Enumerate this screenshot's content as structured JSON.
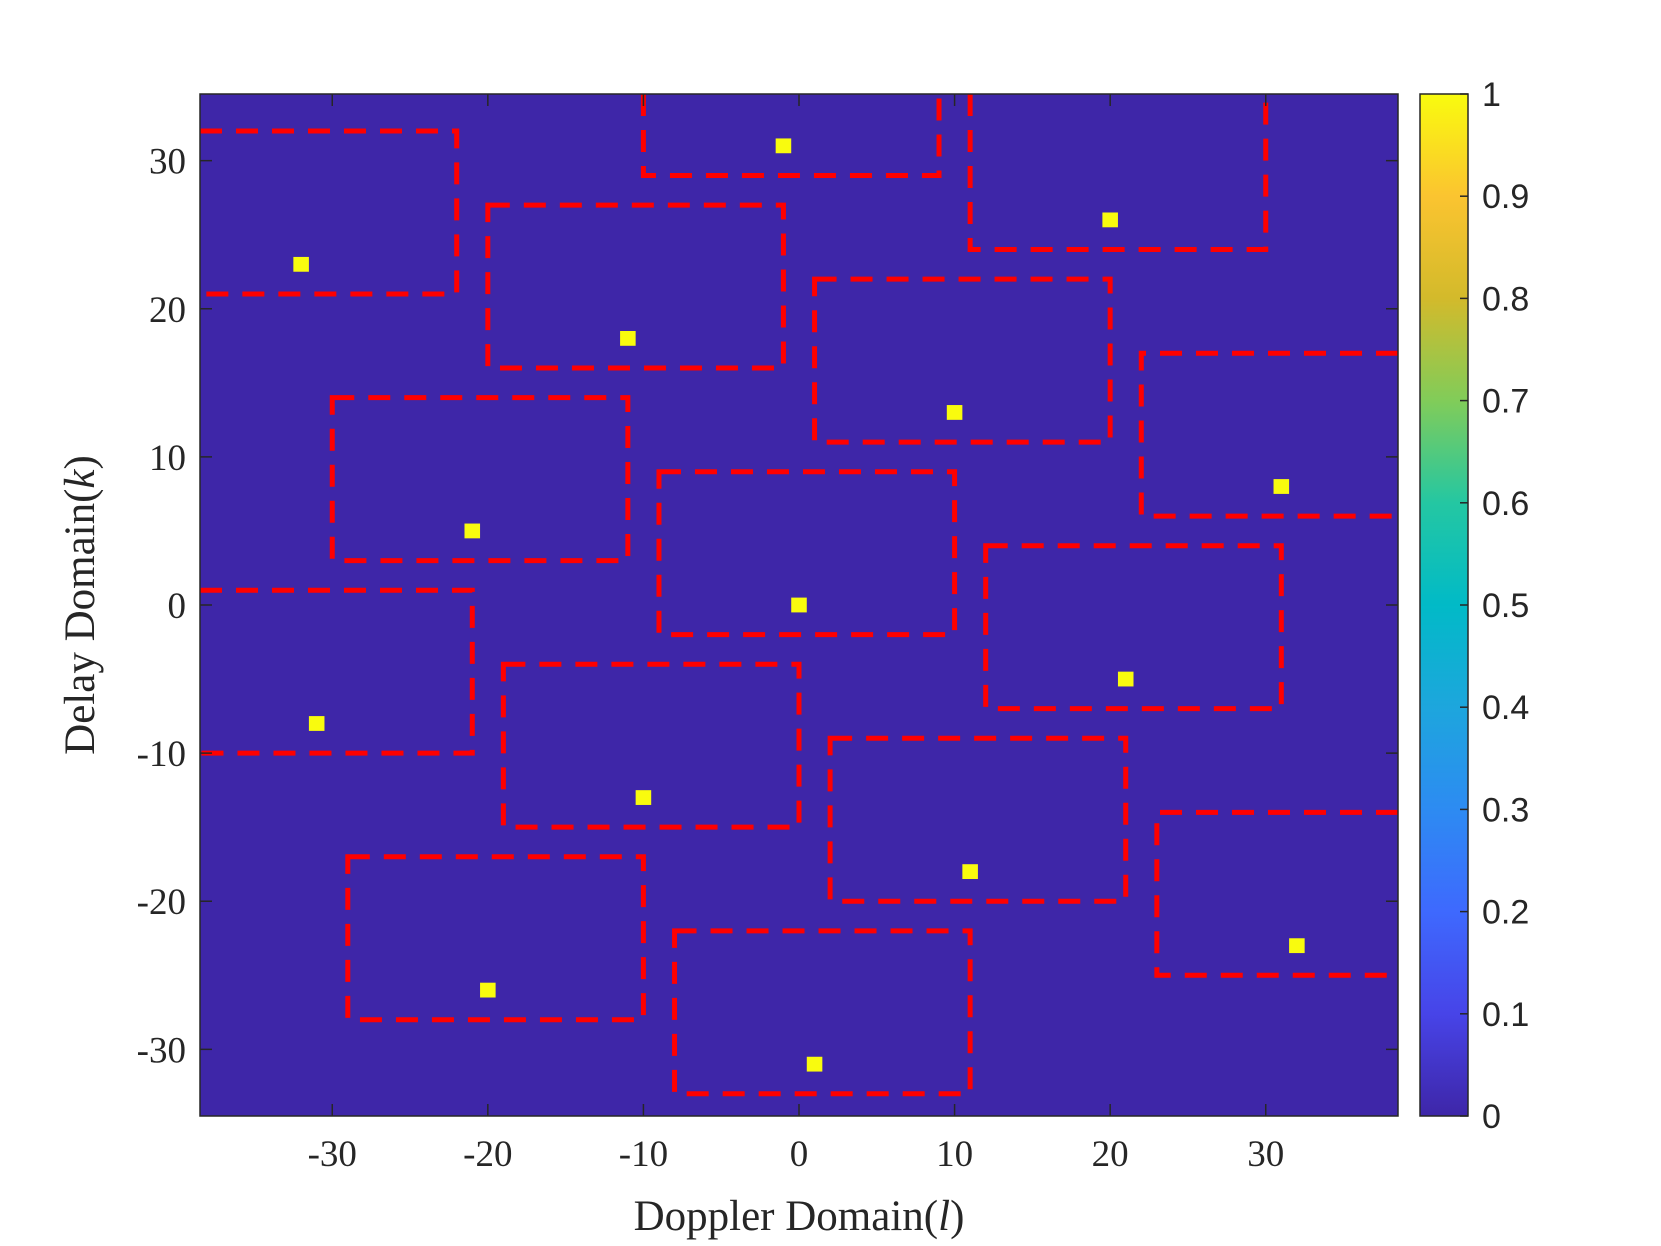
{
  "chart_data": {
    "type": "heatmap",
    "xlabel": "Doppler Domain(l)",
    "ylabel": "Delay Domain(k)",
    "xlim": [
      -38.5,
      38.5
    ],
    "ylim": [
      -34.5,
      34.5
    ],
    "xticks": [
      "-30",
      "-20",
      "-10",
      "0",
      "10",
      "20",
      "30"
    ],
    "yticks": [
      "30",
      "20",
      "10",
      "0",
      "-10",
      "-20",
      "-30"
    ],
    "xtick_values": [
      -30,
      -20,
      -10,
      0,
      10,
      20,
      30
    ],
    "ytick_values": [
      30,
      20,
      10,
      0,
      -10,
      -20,
      -30
    ],
    "background_value": 0,
    "points": [
      {
        "l": -1,
        "k": 31,
        "value": 1
      },
      {
        "l": 20,
        "k": 26,
        "value": 1
      },
      {
        "l": -32,
        "k": 23,
        "value": 1
      },
      {
        "l": -11,
        "k": 18,
        "value": 1
      },
      {
        "l": 10,
        "k": 13,
        "value": 1
      },
      {
        "l": 31,
        "k": 8,
        "value": 1
      },
      {
        "l": -21,
        "k": 5,
        "value": 1
      },
      {
        "l": 0,
        "k": 0,
        "value": 1
      },
      {
        "l": 21,
        "k": -5,
        "value": 1
      },
      {
        "l": -31,
        "k": -8,
        "value": 1
      },
      {
        "l": -10,
        "k": -13,
        "value": 1
      },
      {
        "l": 11,
        "k": -18,
        "value": 1
      },
      {
        "l": 32,
        "k": -23,
        "value": 1
      },
      {
        "l": -20,
        "k": -26,
        "value": 1
      },
      {
        "l": 1,
        "k": -31,
        "value": 1
      }
    ],
    "regions": [
      {
        "l0": -38.5,
        "l1": -22,
        "k0": 21,
        "k1": 32,
        "open": "left"
      },
      {
        "l0": -20,
        "l1": -1,
        "k0": 16,
        "k1": 27
      },
      {
        "l0": -10,
        "l1": 9,
        "k0": 29,
        "k1": 34.5,
        "open": "top"
      },
      {
        "l0": 11,
        "l1": 30,
        "k0": 24,
        "k1": 34.5,
        "open": "top"
      },
      {
        "l0": 1,
        "l1": 20,
        "k0": 11,
        "k1": 22
      },
      {
        "l0": 22,
        "l1": 38.5,
        "k0": 6,
        "k1": 17,
        "open": "right"
      },
      {
        "l0": -30,
        "l1": -11,
        "k0": 3,
        "k1": 14
      },
      {
        "l0": -9,
        "l1": 10,
        "k0": -2,
        "k1": 9
      },
      {
        "l0": 12,
        "l1": 31,
        "k0": -7,
        "k1": 4
      },
      {
        "l0": -38.5,
        "l1": -21,
        "k0": -10,
        "k1": 1,
        "open": "left"
      },
      {
        "l0": -19,
        "l1": 0,
        "k0": -15,
        "k1": -4
      },
      {
        "l0": 2,
        "l1": 21,
        "k0": -20,
        "k1": -9
      },
      {
        "l0": 23,
        "l1": 38.5,
        "k0": -25,
        "k1": -14,
        "open": "right"
      },
      {
        "l0": -29,
        "l1": -10,
        "k0": -28,
        "k1": -17
      },
      {
        "l0": -8,
        "l1": 11,
        "k0": -33,
        "k1": -22
      }
    ],
    "colorbar": {
      "min": 0,
      "max": 1,
      "ticks": [
        "0",
        "0.1",
        "0.2",
        "0.3",
        "0.4",
        "0.5",
        "0.6",
        "0.7",
        "0.8",
        "0.9",
        "1"
      ],
      "tick_values": [
        0,
        0.1,
        0.2,
        0.3,
        0.4,
        0.5,
        0.6,
        0.7,
        0.8,
        0.9,
        1
      ],
      "colormap": "parula"
    },
    "colors": {
      "background": "#3e26a8",
      "point": "#f9fb0e",
      "region_border": "#ff0000",
      "axis": "#262626"
    },
    "grid": false,
    "legend": "none"
  }
}
